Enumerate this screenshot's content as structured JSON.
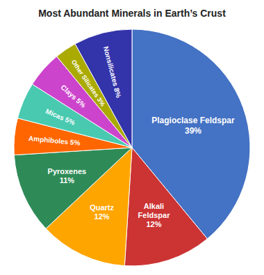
{
  "chart_data": {
    "type": "pie",
    "title": "Most Abundant Minerals in Earth’s Crust",
    "categories": [
      "Plagioclase Feldspar",
      "Alkali\nFeldspar",
      "Quartz",
      "Pyroxenes",
      "Amphiboles",
      "Micas",
      "Clays",
      "Other Silicates",
      "Nonsilicates"
    ],
    "values": [
      39,
      12,
      12,
      11,
      5,
      5,
      5,
      3,
      8
    ],
    "value_labels": [
      "39%",
      "12%",
      "12%",
      "11%",
      "5%",
      "5%",
      "5%",
      "3%",
      "8%"
    ],
    "colors": [
      "#4472C4",
      "#CC3333",
      "#FFA500",
      "#2E8B57",
      "#FF6600",
      "#48C9B0",
      "#CC44CC",
      "#AAAA00",
      "#3333AA"
    ],
    "data_labels": true
  }
}
